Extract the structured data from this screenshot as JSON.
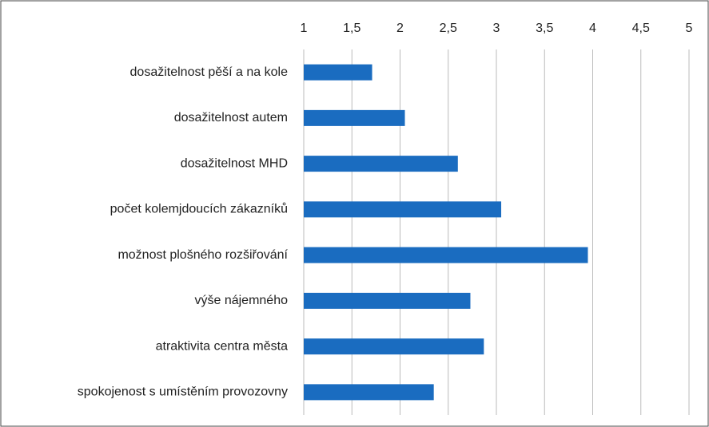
{
  "chart_data": {
    "type": "bar",
    "orientation": "horizontal",
    "categories": [
      "dosažitelnost pěší a na kole",
      "dosažitelnost autem",
      "dosažitelnost MHD",
      "počet kolemjdoucích zákazníků",
      "možnost plošného rozšiřování",
      "výše nájemného",
      "atraktivita centra města",
      "spokojenost s umístěním provozovny"
    ],
    "values": [
      1.71,
      2.05,
      2.6,
      3.05,
      3.95,
      2.73,
      2.87,
      2.35
    ],
    "color": "#1a6cc0",
    "xlim": [
      1,
      5
    ],
    "xticks": [
      1,
      {
        "value": 1.5,
        "label": "1,5"
      },
      2,
      {
        "value": 2.5,
        "label": "2,5"
      },
      3,
      {
        "value": 3.5,
        "label": "3,5"
      },
      4,
      {
        "value": 4.5,
        "label": "4,5"
      },
      5
    ],
    "grid": true
  }
}
